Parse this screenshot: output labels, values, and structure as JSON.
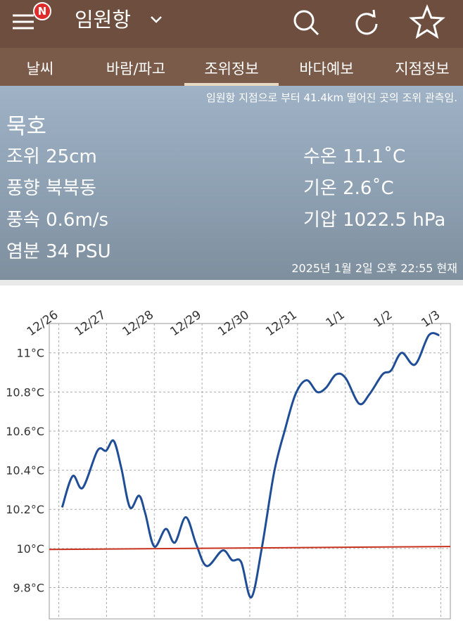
{
  "header": {
    "badge": "N",
    "title": "임원항"
  },
  "tabs": [
    "날씨",
    "바람/파고",
    "조위정보",
    "바다예보",
    "지점정보"
  ],
  "info": {
    "note": "임원항 지점으로 부터 41.4km 떨어진 곳의 조위 관측임.",
    "station": "묵호",
    "left": [
      "조위 25cm",
      "풍향 북북동",
      "풍속 0.6m/s",
      "염분 34 PSU"
    ],
    "right": [
      "수온 11.1˚C",
      "기온 2.6˚C",
      "기압 1022.5 hPa"
    ],
    "timestamp": "2025년 1월 2일 오후 22:55 현재"
  },
  "chart_data": {
    "type": "line",
    "xlim": [
      -0.2,
      8.2
    ],
    "xticks": [
      {
        "value": 0,
        "label": "12/26"
      },
      {
        "value": 1,
        "label": "12/27"
      },
      {
        "value": 2,
        "label": "12/28"
      },
      {
        "value": 3,
        "label": "12/29"
      },
      {
        "value": 4,
        "label": "12/30"
      },
      {
        "value": 5,
        "label": "12/31"
      },
      {
        "value": 6,
        "label": "1/1"
      },
      {
        "value": 7,
        "label": "1/2"
      },
      {
        "value": 8,
        "label": "1/3"
      }
    ],
    "ylim": [
      9.64,
      11.15
    ],
    "yticks": [
      {
        "value": 9.8,
        "label": "9.8°C"
      },
      {
        "value": 10,
        "label": "10°C"
      },
      {
        "value": 10.2,
        "label": "10.2°C"
      },
      {
        "value": 10.4,
        "label": "10.4°C"
      },
      {
        "value": 10.6,
        "label": "10.6°C"
      },
      {
        "value": 10.8,
        "label": "10.8°C"
      },
      {
        "value": 11,
        "label": "11°C"
      }
    ],
    "grid": true,
    "series": [
      {
        "color": "#1f4e96",
        "x": [
          0.07,
          0.29,
          0.5,
          0.81,
          0.99,
          1.15,
          1.31,
          1.49,
          1.68,
          1.81,
          2.0,
          2.24,
          2.43,
          2.66,
          2.88,
          3.1,
          3.43,
          3.63,
          3.82,
          4.03,
          4.25,
          4.51,
          4.74,
          4.96,
          5.19,
          5.41,
          5.59,
          5.81,
          6.01,
          6.29,
          6.51,
          6.78,
          6.96,
          7.18,
          7.46,
          7.75,
          7.97
        ],
        "values": [
          10.21,
          10.37,
          10.31,
          10.5,
          10.5,
          10.55,
          10.41,
          10.21,
          10.27,
          10.18,
          10.01,
          10.1,
          10.03,
          10.16,
          10.02,
          9.91,
          9.99,
          9.94,
          9.93,
          9.75,
          10.0,
          10.39,
          10.61,
          10.79,
          10.86,
          10.8,
          10.82,
          10.89,
          10.87,
          10.74,
          10.79,
          10.89,
          10.91,
          11.0,
          10.94,
          11.09,
          11.09
        ]
      },
      {
        "color": "#c8321e",
        "x": [
          -0.2,
          8.2
        ],
        "values": [
          9.995,
          10.01
        ]
      }
    ]
  }
}
